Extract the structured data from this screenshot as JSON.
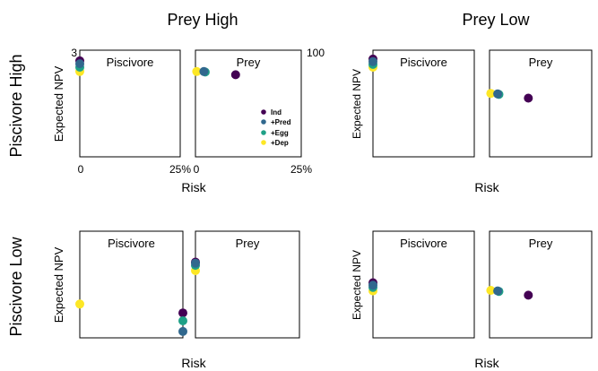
{
  "labels": {
    "col_titles": [
      "Prey High",
      "Prey Low"
    ],
    "row_titles": [
      "Piscivore High",
      "Piscivore Low"
    ],
    "ylabel": "Expected NPV",
    "xlabel": "Risk",
    "panel_piscivore": "Piscivore",
    "panel_prey": "Prey"
  },
  "ticks": {
    "y_left_top": "3",
    "y_right_top": "100",
    "x_zero": "0",
    "x_25": "25%"
  },
  "colors": {
    "Ind": "#440154",
    "+Pred": "#31688e",
    "+Egg": "#1fa187",
    "+Dep": "#fde725"
  },
  "chart_data": [
    {
      "type": "scatter",
      "facet": "Piscivore High / Prey High",
      "panels": [
        {
          "name": "Piscivore",
          "xlim": [
            0,
            25
          ],
          "ylim": [
            0,
            3
          ],
          "series": [
            {
              "name": "Ind",
              "x": 0,
              "y": 2.7
            },
            {
              "name": "+Pred",
              "x": 0,
              "y": 2.62
            },
            {
              "name": "+Egg",
              "x": 0,
              "y": 2.52
            },
            {
              "name": "+Dep",
              "x": 0,
              "y": 2.4
            }
          ]
        },
        {
          "name": "Prey",
          "xlim": [
            0,
            25
          ],
          "ylim": [
            0,
            100
          ],
          "series": [
            {
              "name": "Ind",
              "x": 9.5,
              "y": 77
            },
            {
              "name": "+Pred",
              "x": 2.0,
              "y": 80
            },
            {
              "name": "+Egg",
              "x": 2.3,
              "y": 79.5
            },
            {
              "name": "+Dep",
              "x": 0.3,
              "y": 80
            }
          ]
        }
      ],
      "legend": [
        "Ind",
        "+Pred",
        "+Egg",
        "+Dep"
      ]
    },
    {
      "type": "scatter",
      "facet": "Piscivore High / Prey Low",
      "panels": [
        {
          "name": "Piscivore",
          "xlim": [
            0,
            25
          ],
          "ylim": [
            0,
            3
          ],
          "series": [
            {
              "name": "Ind",
              "x": 0,
              "y": 2.75
            },
            {
              "name": "+Pred",
              "x": 0,
              "y": 2.68
            },
            {
              "name": "+Egg",
              "x": 0,
              "y": 2.6
            },
            {
              "name": "+Dep",
              "x": 0,
              "y": 2.52
            }
          ]
        },
        {
          "name": "Prey",
          "xlim": [
            0,
            25
          ],
          "ylim": [
            0,
            100
          ],
          "series": [
            {
              "name": "Ind",
              "x": 9.5,
              "y": 55
            },
            {
              "name": "+Pred",
              "x": 2.0,
              "y": 59
            },
            {
              "name": "+Egg",
              "x": 2.3,
              "y": 58.5
            },
            {
              "name": "+Dep",
              "x": 0.3,
              "y": 59.5
            }
          ]
        }
      ]
    },
    {
      "type": "scatter",
      "facet": "Piscivore Low / Prey High",
      "panels": [
        {
          "name": "Piscivore",
          "xlim": [
            0,
            25
          ],
          "ylim": [
            0,
            3
          ],
          "series": [
            {
              "name": "Ind",
              "x": 25,
              "y": 0.7
            },
            {
              "name": "+Pred",
              "x": 25,
              "y": 0.18
            },
            {
              "name": "+Egg",
              "x": 25,
              "y": 0.48
            },
            {
              "name": "+Dep",
              "x": 0,
              "y": 0.95
            }
          ]
        },
        {
          "name": "Prey",
          "xlim": [
            0,
            25
          ],
          "ylim": [
            0,
            100
          ],
          "series": [
            {
              "name": "Ind",
              "x": 0,
              "y": 71
            },
            {
              "name": "+Pred",
              "x": 0,
              "y": 70
            },
            {
              "name": "+Egg",
              "x": 0,
              "y": 68
            },
            {
              "name": "+Dep",
              "x": 0,
              "y": 63
            }
          ]
        }
      ]
    },
    {
      "type": "scatter",
      "facet": "Piscivore Low / Prey Low",
      "panels": [
        {
          "name": "Piscivore",
          "xlim": [
            0,
            25
          ],
          "ylim": [
            0,
            3
          ],
          "series": [
            {
              "name": "Ind",
              "x": 0,
              "y": 1.55
            },
            {
              "name": "+Pred",
              "x": 0,
              "y": 1.48
            },
            {
              "name": "+Egg",
              "x": 0,
              "y": 1.42
            },
            {
              "name": "+Dep",
              "x": 0,
              "y": 1.32
            }
          ]
        },
        {
          "name": "Prey",
          "xlim": [
            0,
            25
          ],
          "ylim": [
            0,
            100
          ],
          "series": [
            {
              "name": "Ind",
              "x": 9.5,
              "y": 40
            },
            {
              "name": "+Pred",
              "x": 2.0,
              "y": 44
            },
            {
              "name": "+Egg",
              "x": 2.3,
              "y": 43.5
            },
            {
              "name": "+Dep",
              "x": 0.3,
              "y": 44.5
            }
          ]
        }
      ]
    }
  ]
}
